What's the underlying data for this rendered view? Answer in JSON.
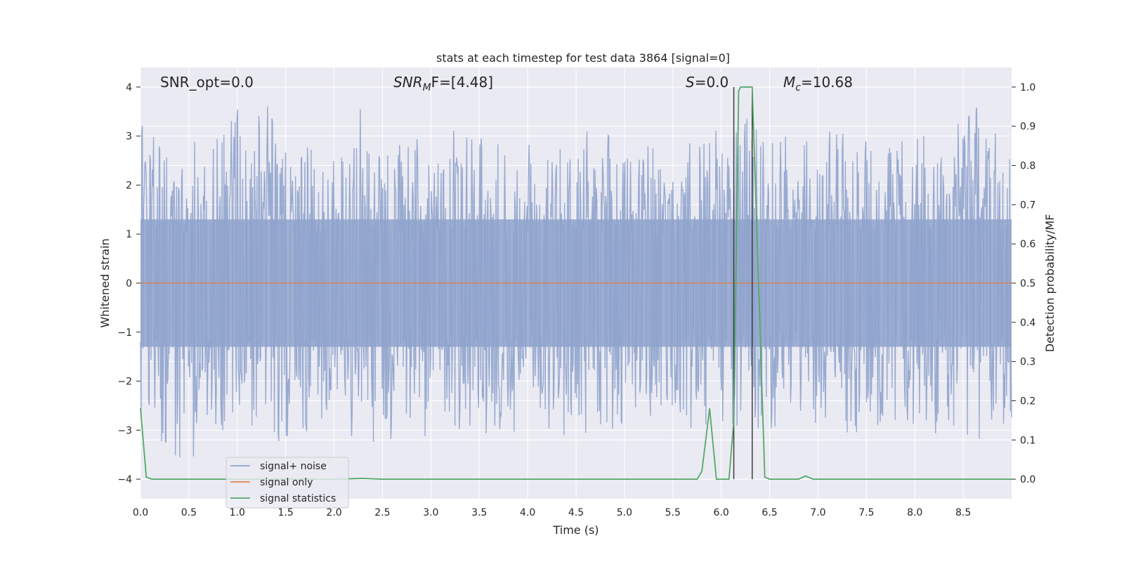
{
  "chart_data": {
    "type": "line",
    "title": "stats at each timestep for test data 3864 [signal=0]",
    "xlabel": "Time (s)",
    "ylabel_left": "Whitened strain",
    "ylabel_right": "Detection probability/MF",
    "xlim": [
      0.0,
      9.0
    ],
    "ylim_left": [
      -4.4,
      4.4
    ],
    "ylim_right": [
      -0.05,
      1.05
    ],
    "x_ticks": [
      "0.0",
      "0.5",
      "1.0",
      "1.5",
      "2.0",
      "2.5",
      "3.0",
      "3.5",
      "4.0",
      "4.5",
      "5.0",
      "5.5",
      "6.0",
      "6.5",
      "7.0",
      "7.5",
      "8.0",
      "8.5"
    ],
    "y_left_ticks": [
      "4",
      "3",
      "2",
      "1",
      "0",
      "−1",
      "−2",
      "−3",
      "−4"
    ],
    "y_right_ticks": [
      "1.0",
      "0.9",
      "0.8",
      "0.7",
      "0.6",
      "0.5",
      "0.4",
      "0.3",
      "0.2",
      "0.1",
      "0.0"
    ],
    "grid": true,
    "legend_position": "lower-left",
    "annotations": {
      "snr_opt": "SNR_opt=0.0",
      "snr_mf_main": "SNR",
      "snr_mf_sub": "M",
      "snr_mf_rest": "F=[4.48]",
      "s_main": "S",
      "s_rest": "=0.0",
      "mc_main": "M",
      "mc_sub": "c",
      "mc_rest": "=10.68"
    },
    "vertical_lines_x": [
      6.13,
      6.32
    ],
    "series": [
      {
        "name": "signal+ noise",
        "color": "#8fa3cc",
        "axis": "left",
        "envelope_x": [
          0.0,
          0.25,
          0.5,
          0.75,
          1.0,
          1.25,
          1.5,
          1.75,
          2.0,
          2.25,
          2.5,
          2.75,
          3.0,
          3.25,
          3.5,
          3.75,
          4.0,
          4.25,
          4.5,
          4.75,
          5.0,
          5.25,
          5.5,
          5.75,
          6.0,
          6.25,
          6.5,
          6.75,
          7.0,
          7.25,
          7.5,
          7.75,
          8.0,
          8.25,
          8.5,
          8.75,
          9.0
        ],
        "envelope_upper": [
          3.5,
          2.9,
          3.0,
          3.0,
          3.8,
          4.0,
          3.1,
          2.9,
          2.8,
          3.8,
          2.8,
          2.9,
          3.0,
          3.2,
          3.2,
          2.8,
          2.9,
          2.7,
          3.1,
          3.1,
          2.9,
          3.0,
          2.5,
          3.3,
          3.1,
          3.5,
          3.1,
          3.2,
          3.1,
          3.4,
          2.9,
          3.2,
          3.3,
          3.0,
          3.6,
          3.6,
          2.7
        ],
        "envelope_lower": [
          -3.0,
          -3.5,
          -3.8,
          -3.0,
          -3.2,
          -2.8,
          -3.6,
          -3.1,
          -3.0,
          -3.2,
          -3.5,
          -2.9,
          -3.2,
          -3.0,
          -3.3,
          -3.1,
          -3.0,
          -3.2,
          -3.0,
          -3.5,
          -2.8,
          -3.0,
          -2.9,
          -3.0,
          -2.8,
          -3.0,
          -3.0,
          -2.7,
          -2.9,
          -3.4,
          -3.0,
          -3.3,
          -2.9,
          -3.1,
          -3.0,
          -3.7,
          -2.8
        ]
      },
      {
        "name": "signal only",
        "color": "#dd8452",
        "axis": "left",
        "x": [
          0.0,
          9.0
        ],
        "y": [
          0.0,
          0.0
        ]
      },
      {
        "name": "signal statistics",
        "color": "#55a868",
        "axis": "right",
        "x": [
          0.0,
          0.06,
          0.12,
          0.5,
          1.0,
          2.0,
          2.3,
          2.5,
          3.0,
          4.0,
          5.0,
          5.5,
          5.75,
          5.8,
          5.88,
          5.95,
          6.08,
          6.13,
          6.18,
          6.2,
          6.32,
          6.45,
          6.5,
          6.8,
          6.87,
          6.95,
          7.0,
          8.0,
          9.0
        ],
        "y": [
          0.18,
          0.005,
          0.0,
          0.0,
          0.0,
          0.0,
          0.002,
          0.0,
          0.0,
          0.0,
          0.0,
          0.0,
          0.0,
          0.02,
          0.18,
          0.0,
          0.0,
          0.15,
          0.99,
          1.0,
          1.0,
          0.005,
          0.0,
          0.0,
          0.008,
          0.0,
          0.0,
          0.0,
          0.0
        ]
      }
    ]
  }
}
